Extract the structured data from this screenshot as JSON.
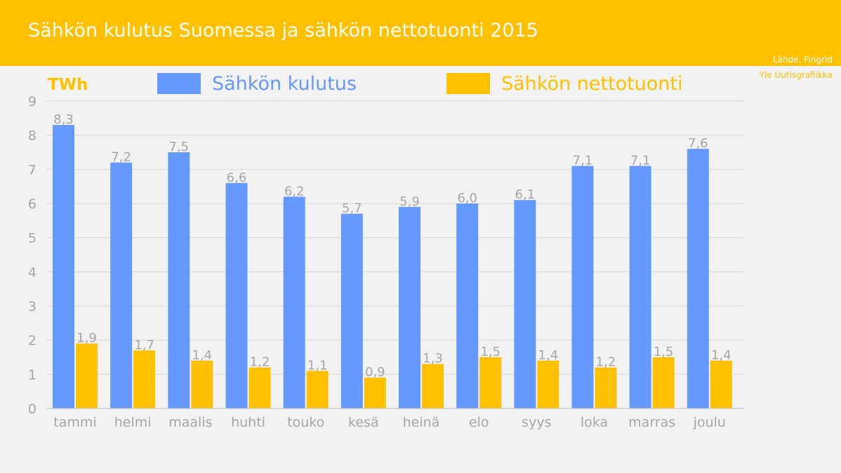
{
  "header": {
    "title": "Sähkön kulutus Suomessa ja sähkön nettotuonti 2015",
    "source": "Lähde: Fingrid",
    "credit": "Yle Uutisgrafiikka"
  },
  "colors": {
    "header_bg": "#ffc000",
    "consumption": "#6699ff",
    "net_import": "#ffc000",
    "text_gray": "#a6a6a6",
    "grid": "#d9d9d9"
  },
  "chart_data": {
    "type": "bar",
    "title": "Sähkön kulutus Suomessa ja sähkön nettotuonti 2015",
    "ylabel": "TWh",
    "xlabel": "",
    "ylim": [
      0,
      9
    ],
    "yticks": [
      0,
      1,
      2,
      3,
      4,
      5,
      6,
      7,
      8,
      9
    ],
    "grid": true,
    "legend_position": "top",
    "categories": [
      "tammi",
      "helmi",
      "maalis",
      "huhti",
      "touko",
      "kesä",
      "heinä",
      "elo",
      "syys",
      "loka",
      "marras",
      "joulu"
    ],
    "series": [
      {
        "name": "Sähkön kulutus",
        "color": "#6699ff",
        "values": [
          8.3,
          7.2,
          7.5,
          6.6,
          6.2,
          5.7,
          5.9,
          6.0,
          6.1,
          7.1,
          7.1,
          7.6
        ],
        "labels": [
          "8,3",
          "7,2",
          "7,5",
          "6,6",
          "6,2",
          "5,7",
          "5,9",
          "6,0",
          "6,1",
          "7,1",
          "7,1",
          "7,6"
        ]
      },
      {
        "name": "Sähkön nettotuonti",
        "color": "#ffc000",
        "values": [
          1.9,
          1.7,
          1.4,
          1.2,
          1.1,
          0.9,
          1.3,
          1.5,
          1.4,
          1.2,
          1.5,
          1.4
        ],
        "labels": [
          "1,9",
          "1,7",
          "1,4",
          "1,2",
          "1,1",
          "0,9",
          "1,3",
          "1,5",
          "1,4",
          "1,2",
          "1,5",
          "1,4"
        ]
      }
    ]
  }
}
